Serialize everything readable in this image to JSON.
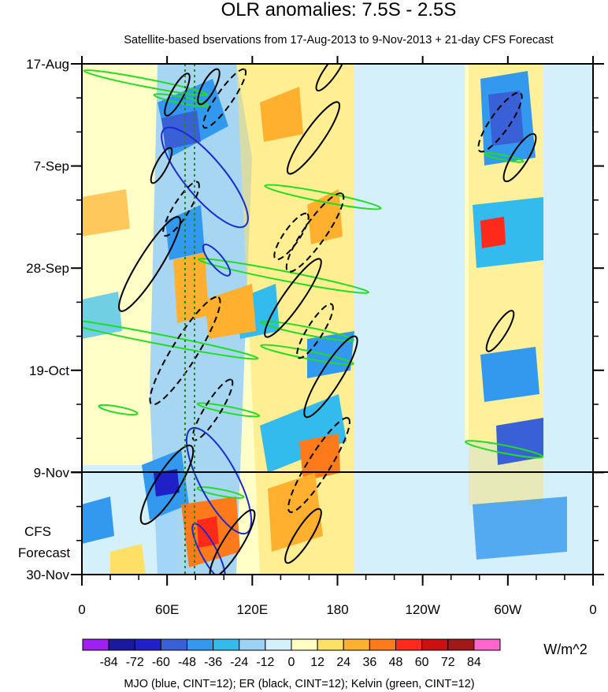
{
  "chart_data": {
    "type": "heatmap",
    "title": "OLR anomalies: 7.5S - 2.5S",
    "subtitle": "Satellite-based bservations from 17-Aug-2013 to 9-Nov-2013 + 21-day CFS Forecast",
    "x_ticks": [
      {
        "label": "0",
        "lon": 0
      },
      {
        "label": "60E",
        "lon": 60
      },
      {
        "label": "120E",
        "lon": 120
      },
      {
        "label": "180",
        "lon": 180
      },
      {
        "label": "120W",
        "lon": 240
      },
      {
        "label": "60W",
        "lon": 300
      },
      {
        "label": "0",
        "lon": 360
      }
    ],
    "y_ticks": [
      {
        "label": "17-Aug",
        "day": 0
      },
      {
        "label": "7-Sep",
        "day": 21
      },
      {
        "label": "28-Sep",
        "day": 42
      },
      {
        "label": "19-Oct",
        "day": 63
      },
      {
        "label": "9-Nov",
        "day": 84
      },
      {
        "label": "30-Nov",
        "day": 105
      }
    ],
    "forecast_start_label": "9-Nov",
    "forecast_label_line1": "CFS",
    "forecast_label_line2": "Forecast",
    "colorbar": {
      "labels": [
        "-84",
        "-72",
        "-60",
        "-48",
        "-36",
        "-24",
        "-12",
        "0",
        "12",
        "24",
        "36",
        "48",
        "60",
        "72",
        "84"
      ],
      "colors": [
        "#a020f0",
        "#1a1aa0",
        "#2020c8",
        "#3a60d8",
        "#3399ee",
        "#33bbee",
        "#9dd2f7",
        "#d4f1fb",
        "#ffffc4",
        "#ffe066",
        "#ffb02e",
        "#ff7a1a",
        "#ff2a1a",
        "#cc1010",
        "#a01818",
        "#ff66cc"
      ],
      "units": "W/m^2"
    },
    "footer": "MJO (blue, CINT=12); ER (black, CINT=12); Kelvin (green, CINT=12)"
  }
}
